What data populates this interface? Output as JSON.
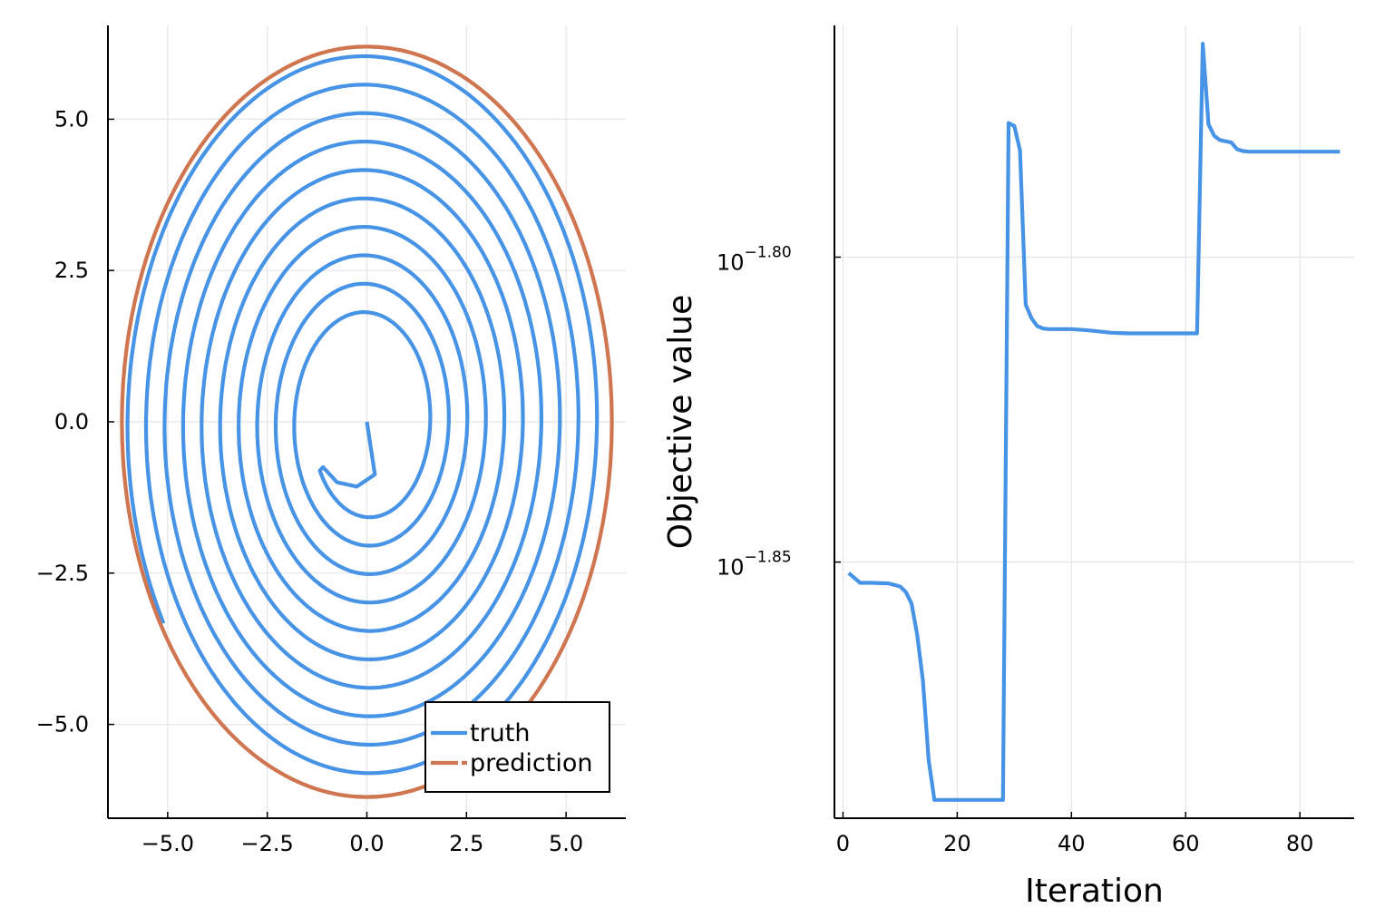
{
  "chart_data": [
    {
      "type": "line",
      "title": "",
      "xlabel": "",
      "ylabel": "",
      "xlim": [
        -6.5,
        6.5
      ],
      "ylim": [
        -6.55,
        6.55
      ],
      "xticks": [
        -5.0,
        -2.5,
        0.0,
        2.5,
        5.0
      ],
      "xtick_labels": [
        "−5.0",
        "−2.5",
        "0.0",
        "2.5",
        "5.0"
      ],
      "yticks": [
        -5.0,
        -2.5,
        0.0,
        2.5,
        5.0
      ],
      "ytick_labels": [
        "−5.0",
        "−2.5",
        "0.0",
        "2.5",
        "5.0"
      ],
      "grid": true,
      "legend": "bottom-right",
      "series": [
        {
          "name": "truth",
          "color": "#4793e6",
          "style": "solid",
          "spiral": {
            "turns": 10,
            "a_start": 1.4,
            "a_end": 6.05,
            "b_start": 1.5,
            "b_end": 6.2
          },
          "start_points": [
            [
              0.0,
              0.0
            ],
            [
              0.2,
              -0.87
            ],
            [
              -0.25,
              -1.07
            ],
            [
              -0.75,
              -1.0
            ],
            [
              -1.1,
              -0.75
            ]
          ]
        },
        {
          "name": "prediction",
          "color": "#cf7650",
          "style": "dashed",
          "ellipse": {
            "cx": 0.0,
            "cy": 0.0,
            "rx": 6.15,
            "ry": 6.2
          }
        }
      ]
    },
    {
      "type": "line",
      "title": "",
      "xlabel": "Iteration",
      "ylabel": "Objective value",
      "yscale": "log10",
      "xlim": [
        -1.5,
        89.5
      ],
      "ylim": [
        -1.892,
        -1.762
      ],
      "xticks": [
        0,
        20,
        40,
        60,
        80
      ],
      "xtick_labels": [
        "0",
        "20",
        "40",
        "60",
        "80"
      ],
      "yticks": [
        -1.8,
        -1.85
      ],
      "ytick_base": "10",
      "ytick_exponents": [
        "−1.80",
        "−1.85"
      ],
      "grid": true,
      "series": [
        {
          "name": "",
          "color": "#4793e6",
          "x": [
            1,
            3,
            5,
            8,
            10,
            11,
            12,
            13,
            14,
            15,
            16,
            17,
            20,
            25,
            28,
            29,
            30,
            31,
            32,
            33,
            34,
            35,
            36,
            40,
            43,
            47,
            50,
            55,
            60,
            62,
            63,
            64,
            65,
            66,
            67,
            68,
            69,
            70,
            71,
            75,
            80,
            87
          ],
          "y": [
            -1.8518,
            -1.8534,
            -1.8534,
            -1.8535,
            -1.854,
            -1.8549,
            -1.8568,
            -1.862,
            -1.8695,
            -1.8825,
            -1.889,
            -1.889,
            -1.889,
            -1.889,
            -1.889,
            -1.778,
            -1.7785,
            -1.7825,
            -1.8078,
            -1.81,
            -1.8113,
            -1.8117,
            -1.8118,
            -1.8118,
            -1.812,
            -1.8124,
            -1.8125,
            -1.8125,
            -1.8125,
            -1.8125,
            -1.765,
            -1.7782,
            -1.7801,
            -1.7808,
            -1.781,
            -1.7812,
            -1.7823,
            -1.7826,
            -1.7827,
            -1.7827,
            -1.7827,
            -1.7827
          ]
        }
      ]
    }
  ]
}
